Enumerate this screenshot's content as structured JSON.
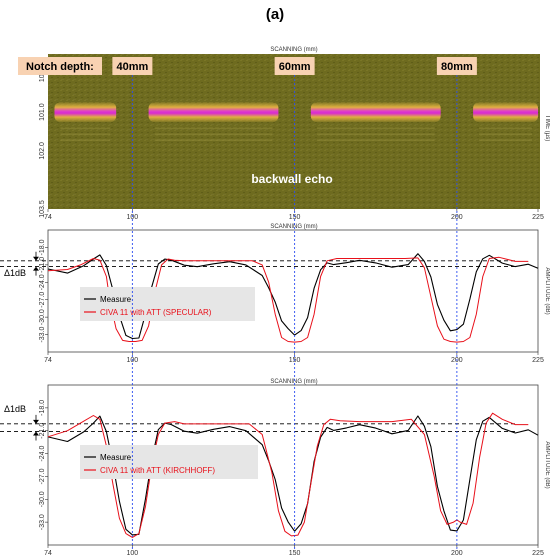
{
  "figure": {
    "label": "(a)",
    "notch_label": "Notch depth:",
    "notch_depths": [
      "40mm",
      "60mm",
      "80mm"
    ],
    "notch_positions_mm": [
      100,
      150,
      200
    ],
    "echo_label": "backwall echo",
    "delta_label": "Δ1dB"
  },
  "chart_data": [
    {
      "type": "heatmap",
      "title": "",
      "xlabel": "SCANNING (mm)",
      "ylabel": "TIME (µs)",
      "xlim": [
        74,
        225
      ],
      "ylim": [
        99.5,
        103.5
      ],
      "y_reversed": true,
      "x_ticks": [
        "74",
        "100",
        "150",
        "200",
        "225"
      ],
      "y_ticks": [
        "100.0",
        "101.0",
        "102.0",
        "103.5"
      ],
      "backwall_time_us": 101.0,
      "echo_segments_mm": [
        [
          76,
          95
        ],
        [
          105,
          145
        ],
        [
          155,
          195
        ],
        [
          205,
          225
        ]
      ],
      "colors": {
        "background": "#6f6c1e",
        "echo_core": "#e030c0",
        "echo_edge": "#d8c030"
      }
    },
    {
      "type": "line",
      "title": "",
      "xlabel": "SCANNING (mm)",
      "ylabel": "AMPLITUDE (dB)",
      "xlim": [
        74,
        225
      ],
      "ylim": [
        -36,
        -15
      ],
      "x_ticks": [
        "74",
        "100",
        "150",
        "200",
        "225"
      ],
      "y_ticks": [
        "-18.0",
        "-21.0",
        "-24.0",
        "-27.0",
        "-30.0",
        "-33.0"
      ],
      "reference_lines_db": [
        -20.3,
        -21.3
      ],
      "series": [
        {
          "name": "Measure",
          "color": "#000000",
          "x": [
            74,
            80,
            85,
            88,
            90,
            92,
            94,
            96,
            98,
            100,
            102,
            104,
            106,
            108,
            110,
            112,
            116,
            120,
            125,
            130,
            135,
            140,
            142,
            144,
            146,
            148,
            150,
            152,
            154,
            156,
            158,
            160,
            162,
            166,
            170,
            175,
            180,
            185,
            188,
            190,
            192,
            194,
            196,
            198,
            200,
            202,
            204,
            206,
            208,
            210,
            214,
            218,
            222,
            225
          ],
          "y": [
            -22.2,
            -21.9,
            -21.2,
            -20.0,
            -19.6,
            -21.5,
            -25.5,
            -30.0,
            -32.8,
            -33.6,
            -33.0,
            -29.5,
            -24.5,
            -21.2,
            -20.2,
            -20.6,
            -21.0,
            -20.8,
            -20.9,
            -21.0,
            -21.2,
            -22.6,
            -24.5,
            -27.5,
            -30.5,
            -32.5,
            -33.2,
            -32.8,
            -30.0,
            -25.0,
            -21.5,
            -20.3,
            -20.8,
            -21.0,
            -20.8,
            -20.9,
            -21.0,
            -20.6,
            -19.6,
            -20.5,
            -23.5,
            -27.5,
            -30.5,
            -31.8,
            -32.0,
            -31.0,
            -27.0,
            -22.5,
            -20.2,
            -19.8,
            -20.8,
            -21.2,
            -21.0,
            -21.1
          ]
        },
        {
          "name": "CIVA 11 with ATT (SPECULAR)",
          "color": "#e8101a",
          "x": [
            74,
            80,
            84,
            88,
            90,
            92,
            93,
            95,
            97,
            99,
            101,
            103,
            105,
            107,
            109,
            111,
            113,
            116,
            120,
            126,
            132,
            137,
            140,
            142,
            144,
            146,
            148,
            150,
            152,
            154,
            156,
            158,
            160,
            163,
            168,
            176,
            184,
            188,
            190,
            192,
            194,
            196,
            198,
            200,
            202,
            204,
            206,
            208,
            210,
            213,
            218,
            222
          ],
          "y": [
            -22.0,
            -21.8,
            -21.0,
            -19.9,
            -20.2,
            -23.0,
            -27.0,
            -32.0,
            -34.0,
            -34.2,
            -34.2,
            -34.0,
            -31.5,
            -25.5,
            -21.0,
            -20.0,
            -20.2,
            -20.3,
            -20.3,
            -20.3,
            -20.3,
            -20.3,
            -21.0,
            -24.0,
            -29.5,
            -33.5,
            -34.2,
            -34.3,
            -34.2,
            -33.5,
            -29.5,
            -23.0,
            -20.3,
            -19.9,
            -19.9,
            -19.9,
            -19.9,
            -19.8,
            -21.5,
            -26.5,
            -31.5,
            -33.8,
            -34.2,
            -34.3,
            -34.2,
            -33.5,
            -29.5,
            -23.0,
            -19.9,
            -19.7,
            -20.4,
            -20.4
          ]
        }
      ]
    },
    {
      "type": "line",
      "title": "",
      "xlabel": "SCANNING (mm)",
      "ylabel": "AMPLITUDE (dB)",
      "xlim": [
        74,
        225
      ],
      "ylim": [
        -36,
        -15
      ],
      "x_ticks": [
        "74",
        "100",
        "150",
        "200",
        "225"
      ],
      "y_ticks": [
        "-18.0",
        "-21.0",
        "-24.0",
        "-27.0",
        "-30.0",
        "-33.0"
      ],
      "reference_lines_db": [
        -20.1,
        -21.1
      ],
      "series": [
        {
          "name": "Measure",
          "color": "#000000",
          "x": [
            74,
            80,
            85,
            88,
            90,
            92,
            94,
            96,
            98,
            100,
            102,
            104,
            106,
            108,
            110,
            112,
            116,
            120,
            125,
            130,
            135,
            140,
            142,
            144,
            146,
            148,
            150,
            152,
            154,
            156,
            158,
            160,
            162,
            166,
            170,
            175,
            180,
            185,
            188,
            190,
            192,
            194,
            196,
            198,
            200,
            202,
            204,
            206,
            208,
            210,
            214,
            218,
            222,
            225
          ],
          "y": [
            -22.3,
            -21.9,
            -21.2,
            -20.0,
            -19.4,
            -21.5,
            -25.5,
            -30.5,
            -33.6,
            -34.6,
            -34.0,
            -30.0,
            -24.5,
            -21.2,
            -20.2,
            -20.6,
            -21.0,
            -20.8,
            -20.9,
            -21.0,
            -21.2,
            -22.6,
            -24.5,
            -27.5,
            -31.0,
            -33.5,
            -34.3,
            -33.7,
            -30.5,
            -25.0,
            -21.5,
            -20.2,
            -20.8,
            -21.0,
            -20.8,
            -20.9,
            -21.0,
            -20.6,
            -19.6,
            -20.5,
            -23.5,
            -28.0,
            -31.5,
            -33.5,
            -34.0,
            -32.5,
            -27.5,
            -22.5,
            -20.0,
            -19.7,
            -20.8,
            -21.2,
            -21.0,
            -21.1
          ]
        },
        {
          "name": "CIVA 11 with ATT (KIRCHHOFF)",
          "color": "#e8101a",
          "x": [
            74,
            80,
            84,
            88,
            90,
            92,
            94,
            96,
            98,
            100,
            102,
            104,
            106,
            108,
            110,
            113,
            116,
            122,
            130,
            136,
            140,
            143,
            145,
            147,
            149,
            151,
            153,
            155,
            157,
            159,
            161,
            164,
            170,
            180,
            186,
            190,
            193,
            195,
            197,
            199,
            200,
            201,
            203,
            205,
            207,
            209,
            211,
            214,
            218,
            222
          ],
          "y": [
            -21.8,
            -21.0,
            -20.0,
            -19.0,
            -19.5,
            -23.0,
            -28.0,
            -32.5,
            -34.5,
            -35.0,
            -34.5,
            -31.0,
            -25.5,
            -21.5,
            -20.0,
            -19.8,
            -20.1,
            -20.1,
            -20.1,
            -20.1,
            -21.5,
            -26.5,
            -31.5,
            -34.2,
            -34.8,
            -34.7,
            -33.0,
            -28.0,
            -23.0,
            -20.2,
            -19.5,
            -19.7,
            -19.8,
            -19.8,
            -19.5,
            -21.5,
            -27.0,
            -31.5,
            -33.3,
            -33.0,
            -32.7,
            -33.0,
            -33.3,
            -30.5,
            -24.5,
            -20.0,
            -18.7,
            -19.5,
            -20.2,
            -20.2
          ]
        }
      ]
    }
  ]
}
